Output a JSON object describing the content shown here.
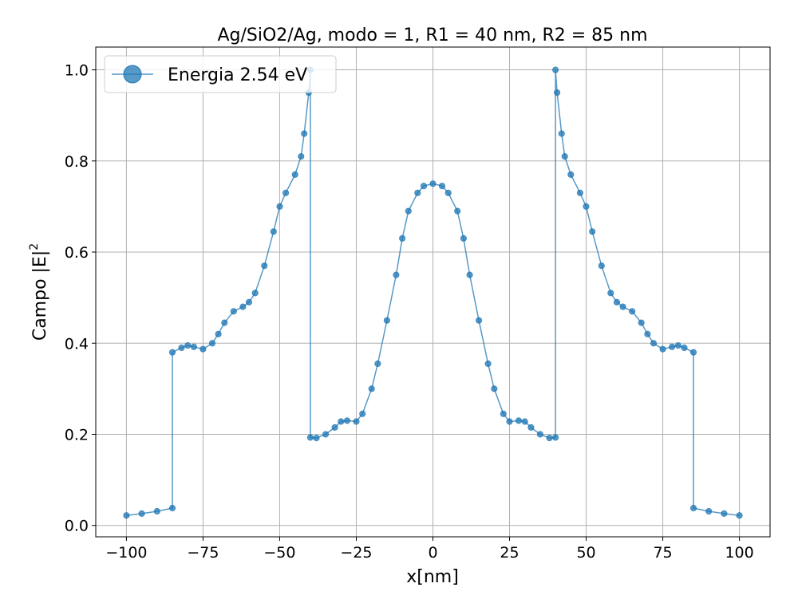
{
  "chart_data": {
    "type": "line",
    "title": "Ag/SiO2/Ag, modo = 1, R1 = 40 nm, R2 = 85 nm",
    "xlabel": "x[nm]",
    "ylabel_text": "Campo |E|",
    "ylabel_sup": "2",
    "xlim": [
      -110,
      110
    ],
    "ylim": [
      -0.025,
      1.05
    ],
    "grid": true,
    "legend_position": "top-left",
    "x_ticks": [
      -100,
      -75,
      -50,
      -25,
      0,
      25,
      50,
      75,
      100
    ],
    "x_tick_labels": [
      "−100",
      "−75",
      "−50",
      "−25",
      "0",
      "25",
      "50",
      "75",
      "100"
    ],
    "y_ticks": [
      0.0,
      0.2,
      0.4,
      0.6,
      0.8,
      1.0
    ],
    "y_tick_labels": [
      "0.0",
      "0.2",
      "0.4",
      "0.6",
      "0.8",
      "1.0"
    ],
    "colors": {
      "series": "#1f77b4",
      "grid": "#b0b0b0"
    },
    "series": [
      {
        "name": "Energia 2.54 eV",
        "marker": "circle",
        "x": [
          -100,
          -95,
          -90,
          -85,
          -85,
          -82,
          -80,
          -78,
          -75,
          -72,
          -70,
          -68,
          -65,
          -62,
          -60,
          -58,
          -55,
          -52,
          -50,
          -48,
          -45,
          -43,
          -42,
          -40.5,
          -40,
          -40,
          -38,
          -35,
          -32,
          -30,
          -28,
          -25,
          -23,
          -20,
          -18,
          -15,
          -12,
          -10,
          -8,
          -5,
          -3,
          0,
          3,
          5,
          8,
          10,
          12,
          15,
          18,
          20,
          23,
          25,
          28,
          30,
          32,
          35,
          38,
          40,
          40,
          40.5,
          42,
          43,
          45,
          48,
          50,
          52,
          55,
          58,
          60,
          62,
          65,
          68,
          70,
          72,
          75,
          78,
          80,
          82,
          85,
          85,
          90,
          95,
          100
        ],
        "y": [
          0.022,
          0.026,
          0.031,
          0.038,
          0.38,
          0.39,
          0.395,
          0.392,
          0.387,
          0.4,
          0.42,
          0.445,
          0.47,
          0.48,
          0.49,
          0.51,
          0.57,
          0.645,
          0.7,
          0.73,
          0.77,
          0.81,
          0.86,
          0.95,
          1.0,
          0.193,
          0.192,
          0.2,
          0.215,
          0.228,
          0.23,
          0.228,
          0.245,
          0.3,
          0.355,
          0.45,
          0.55,
          0.63,
          0.69,
          0.73,
          0.745,
          0.75,
          0.745,
          0.73,
          0.69,
          0.63,
          0.55,
          0.45,
          0.355,
          0.3,
          0.245,
          0.228,
          0.23,
          0.228,
          0.215,
          0.2,
          0.192,
          0.193,
          1.0,
          0.95,
          0.86,
          0.81,
          0.77,
          0.73,
          0.7,
          0.645,
          0.57,
          0.51,
          0.49,
          0.48,
          0.47,
          0.445,
          0.42,
          0.4,
          0.387,
          0.392,
          0.395,
          0.39,
          0.38,
          0.038,
          0.031,
          0.026,
          0.022
        ]
      }
    ]
  }
}
